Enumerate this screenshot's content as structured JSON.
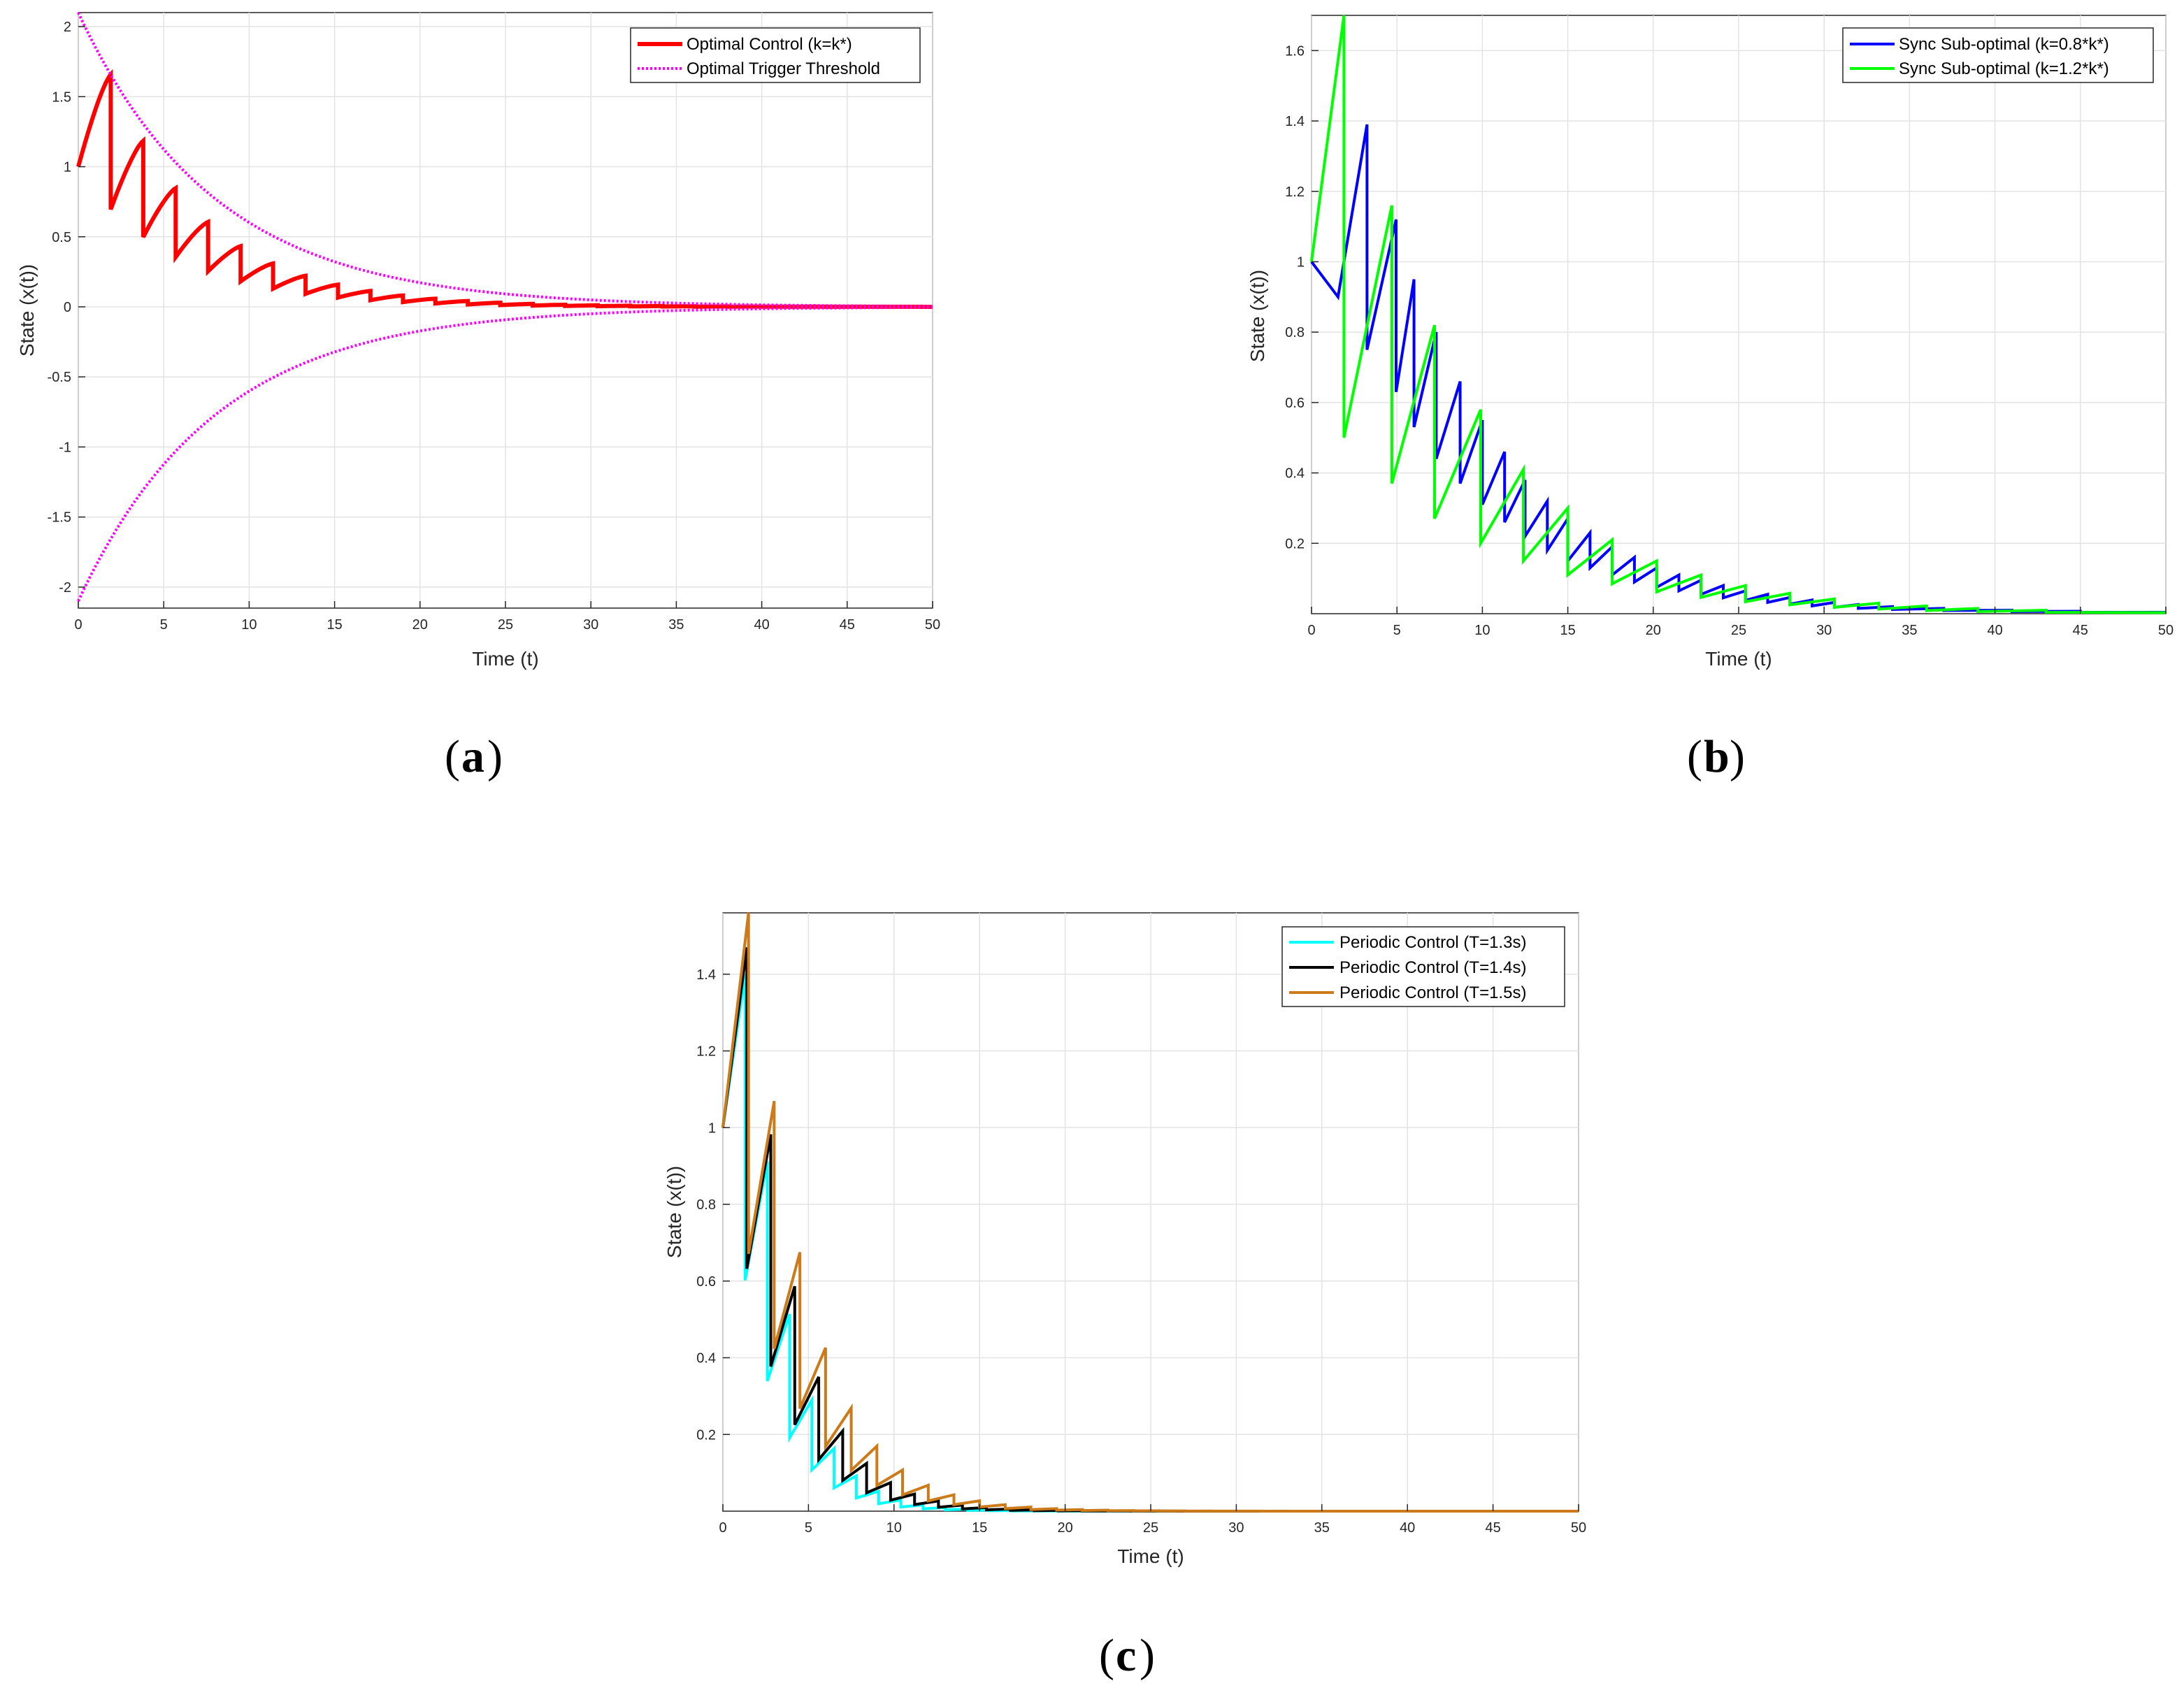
{
  "chart_data": [
    {
      "id": "a",
      "type": "line",
      "caption": "a",
      "xlabel": "Time (t)",
      "ylabel": "State (x(t))",
      "xlim": [
        0,
        50
      ],
      "ylim": [
        -2.15,
        2.1
      ],
      "xticks": [
        0,
        5,
        10,
        15,
        20,
        25,
        30,
        35,
        40,
        45,
        50
      ],
      "yticks": [
        -2,
        -1.5,
        -1,
        -0.5,
        0,
        0.5,
        1,
        1.5,
        2
      ],
      "grid": true,
      "legend_position": "top-right",
      "series": [
        {
          "name": "Optimal Control (k=k*)",
          "color": "#ff0000",
          "style": "solid",
          "kind": "sawtooth",
          "period": 1.9,
          "decay": 0.125,
          "start": 1.0,
          "reset_ratio": 0.42
        },
        {
          "name": "Optimal Trigger Threshold",
          "color": "#ff00ff",
          "style": "dotted",
          "kind": "envelope",
          "amplitude": 2.1,
          "decay": 0.125
        }
      ]
    },
    {
      "id": "b",
      "type": "line",
      "caption": "b",
      "xlabel": "Time (t)",
      "ylabel": "State (x(t))",
      "xlim": [
        0,
        50
      ],
      "ylim": [
        0,
        1.7
      ],
      "xticks": [
        0,
        5,
        10,
        15,
        20,
        25,
        30,
        35,
        40,
        45,
        50
      ],
      "yticks": [
        0.2,
        0.4,
        0.6,
        0.8,
        1,
        1.2,
        1.4,
        1.6
      ],
      "grid": true,
      "legend_position": "top-right",
      "series": [
        {
          "name": "Sync Sub-optimal (k=0.8*k*)",
          "color": "#0000ff",
          "style": "solid",
          "jumps": [
            [
              0,
              1.0
            ],
            [
              1.55,
              0.9
            ],
            [
              3.25,
              1.39
            ],
            [
              3.25,
              0.75
            ],
            [
              4.95,
              1.12
            ],
            [
              4.95,
              0.63
            ],
            [
              6.0,
              0.95
            ],
            [
              6.0,
              0.53
            ],
            [
              7.3,
              0.8
            ],
            [
              7.3,
              0.44
            ],
            [
              8.7,
              0.66
            ],
            [
              8.7,
              0.37
            ],
            [
              10.0,
              0.55
            ],
            [
              10.0,
              0.31
            ],
            [
              11.3,
              0.46
            ],
            [
              11.3,
              0.26
            ],
            [
              12.5,
              0.38
            ],
            [
              12.5,
              0.22
            ],
            [
              13.8,
              0.32
            ],
            [
              13.8,
              0.18
            ],
            [
              15.0,
              0.27
            ],
            [
              15.0,
              0.15
            ],
            [
              16.3,
              0.23
            ],
            [
              16.3,
              0.13
            ],
            [
              17.6,
              0.19
            ],
            [
              17.6,
              0.11
            ],
            [
              18.9,
              0.16
            ],
            [
              18.9,
              0.09
            ],
            [
              20.2,
              0.13
            ],
            [
              20.2,
              0.075
            ],
            [
              21.5,
              0.11
            ],
            [
              21.5,
              0.065
            ],
            [
              22.8,
              0.095
            ],
            [
              22.8,
              0.055
            ],
            [
              24.1,
              0.08
            ],
            [
              24.1,
              0.045
            ],
            [
              25.4,
              0.065
            ],
            [
              25.4,
              0.038
            ],
            [
              26.7,
              0.055
            ],
            [
              26.7,
              0.032
            ],
            [
              28.0,
              0.046
            ],
            [
              28.0,
              0.027
            ],
            [
              29.3,
              0.039
            ],
            [
              29.3,
              0.022
            ],
            [
              30.6,
              0.032
            ],
            [
              30.6,
              0.018
            ],
            [
              32.0,
              0.026
            ],
            [
              32.0,
              0.015
            ],
            [
              34.0,
              0.02
            ],
            [
              34.0,
              0.012
            ],
            [
              37.0,
              0.015
            ],
            [
              37.0,
              0.009
            ],
            [
              41.0,
              0.01
            ],
            [
              41.0,
              0.006
            ],
            [
              45.0,
              0.007
            ],
            [
              45.0,
              0.004
            ],
            [
              50.0,
              0.004
            ]
          ]
        },
        {
          "name": "Sync Sub-optimal (k=1.2*k*)",
          "color": "#00ff00",
          "style": "solid",
          "jumps": [
            [
              0,
              1.0
            ],
            [
              1.9,
              1.7
            ],
            [
              1.9,
              0.5
            ],
            [
              4.7,
              1.16
            ],
            [
              4.7,
              0.37
            ],
            [
              7.2,
              0.82
            ],
            [
              7.2,
              0.27
            ],
            [
              9.9,
              0.58
            ],
            [
              9.9,
              0.2
            ],
            [
              12.4,
              0.41
            ],
            [
              12.4,
              0.15
            ],
            [
              15.0,
              0.3
            ],
            [
              15.0,
              0.11
            ],
            [
              17.6,
              0.21
            ],
            [
              17.6,
              0.085
            ],
            [
              20.2,
              0.15
            ],
            [
              20.2,
              0.062
            ],
            [
              22.8,
              0.11
            ],
            [
              22.8,
              0.046
            ],
            [
              25.4,
              0.08
            ],
            [
              25.4,
              0.034
            ],
            [
              28.0,
              0.058
            ],
            [
              28.0,
              0.025
            ],
            [
              30.6,
              0.042
            ],
            [
              30.6,
              0.018
            ],
            [
              33.2,
              0.03
            ],
            [
              33.2,
              0.013
            ],
            [
              36.0,
              0.022
            ],
            [
              36.0,
              0.009
            ],
            [
              39.0,
              0.015
            ],
            [
              39.0,
              0.006
            ],
            [
              43.0,
              0.01
            ],
            [
              43.0,
              0.004
            ],
            [
              50.0,
              0.003
            ]
          ]
        }
      ]
    },
    {
      "id": "c",
      "type": "line",
      "caption": "c",
      "xlabel": "Time (t)",
      "ylabel": "State (x(t))",
      "xlim": [
        0,
        50
      ],
      "ylim": [
        0,
        1.56
      ],
      "xticks": [
        0,
        5,
        10,
        15,
        20,
        25,
        30,
        35,
        40,
        45,
        50
      ],
      "yticks": [
        0.2,
        0.4,
        0.6,
        0.8,
        1,
        1.2,
        1.4
      ],
      "grid": true,
      "legend_position": "top-right",
      "series": [
        {
          "name": "Periodic Control (T=1.3s)",
          "color": "#00ffff",
          "style": "solid",
          "kind": "periodic",
          "period": 1.3,
          "start": 1.0,
          "growth": 0.33,
          "ratio": 0.62,
          "first_peak": 1.4
        },
        {
          "name": "Periodic Control (T=1.4s)",
          "color": "#000000",
          "style": "solid",
          "kind": "periodic",
          "period": 1.4,
          "start": 1.0,
          "growth": 0.33,
          "ratio": 0.64,
          "first_peak": 1.47
        },
        {
          "name": "Periodic Control (T=1.5s)",
          "color": "#cc7a1a",
          "style": "solid",
          "kind": "periodic",
          "period": 1.5,
          "start": 1.0,
          "growth": 0.33,
          "ratio": 0.66,
          "first_peak": 1.56
        }
      ]
    }
  ]
}
